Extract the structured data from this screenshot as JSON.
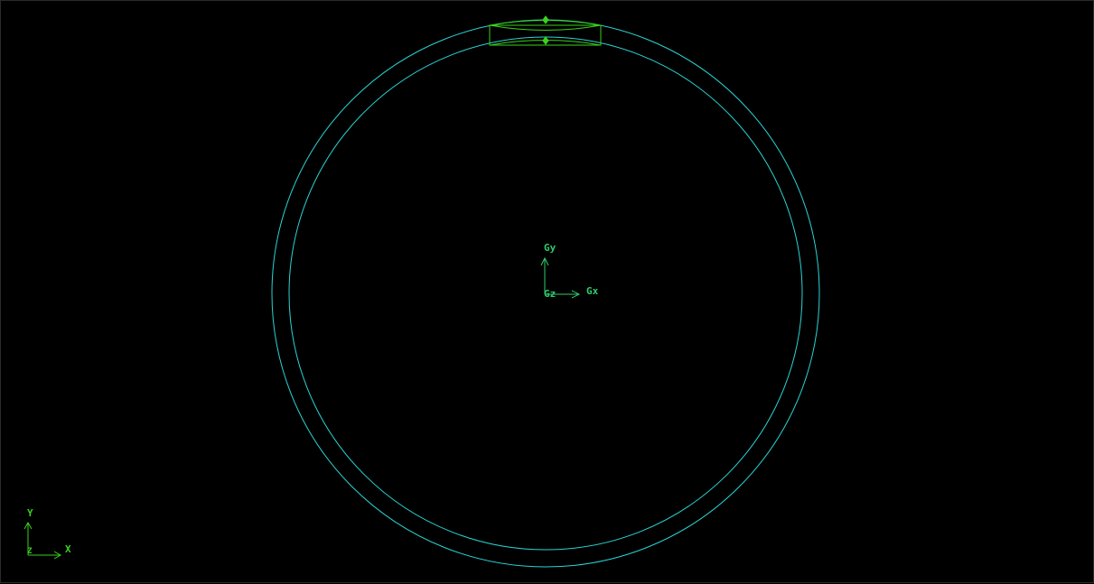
{
  "colors": {
    "background": "#000000",
    "geometry": "#2ad4d4",
    "selection": "#3ad21a",
    "axis": "#2ecb6e"
  },
  "global_axes": {
    "x_label": "Gx",
    "y_label": "Gy",
    "z_label": "Gz"
  },
  "view_triad": {
    "x_label": "X",
    "y_label": "Y",
    "z_label": "Z"
  }
}
